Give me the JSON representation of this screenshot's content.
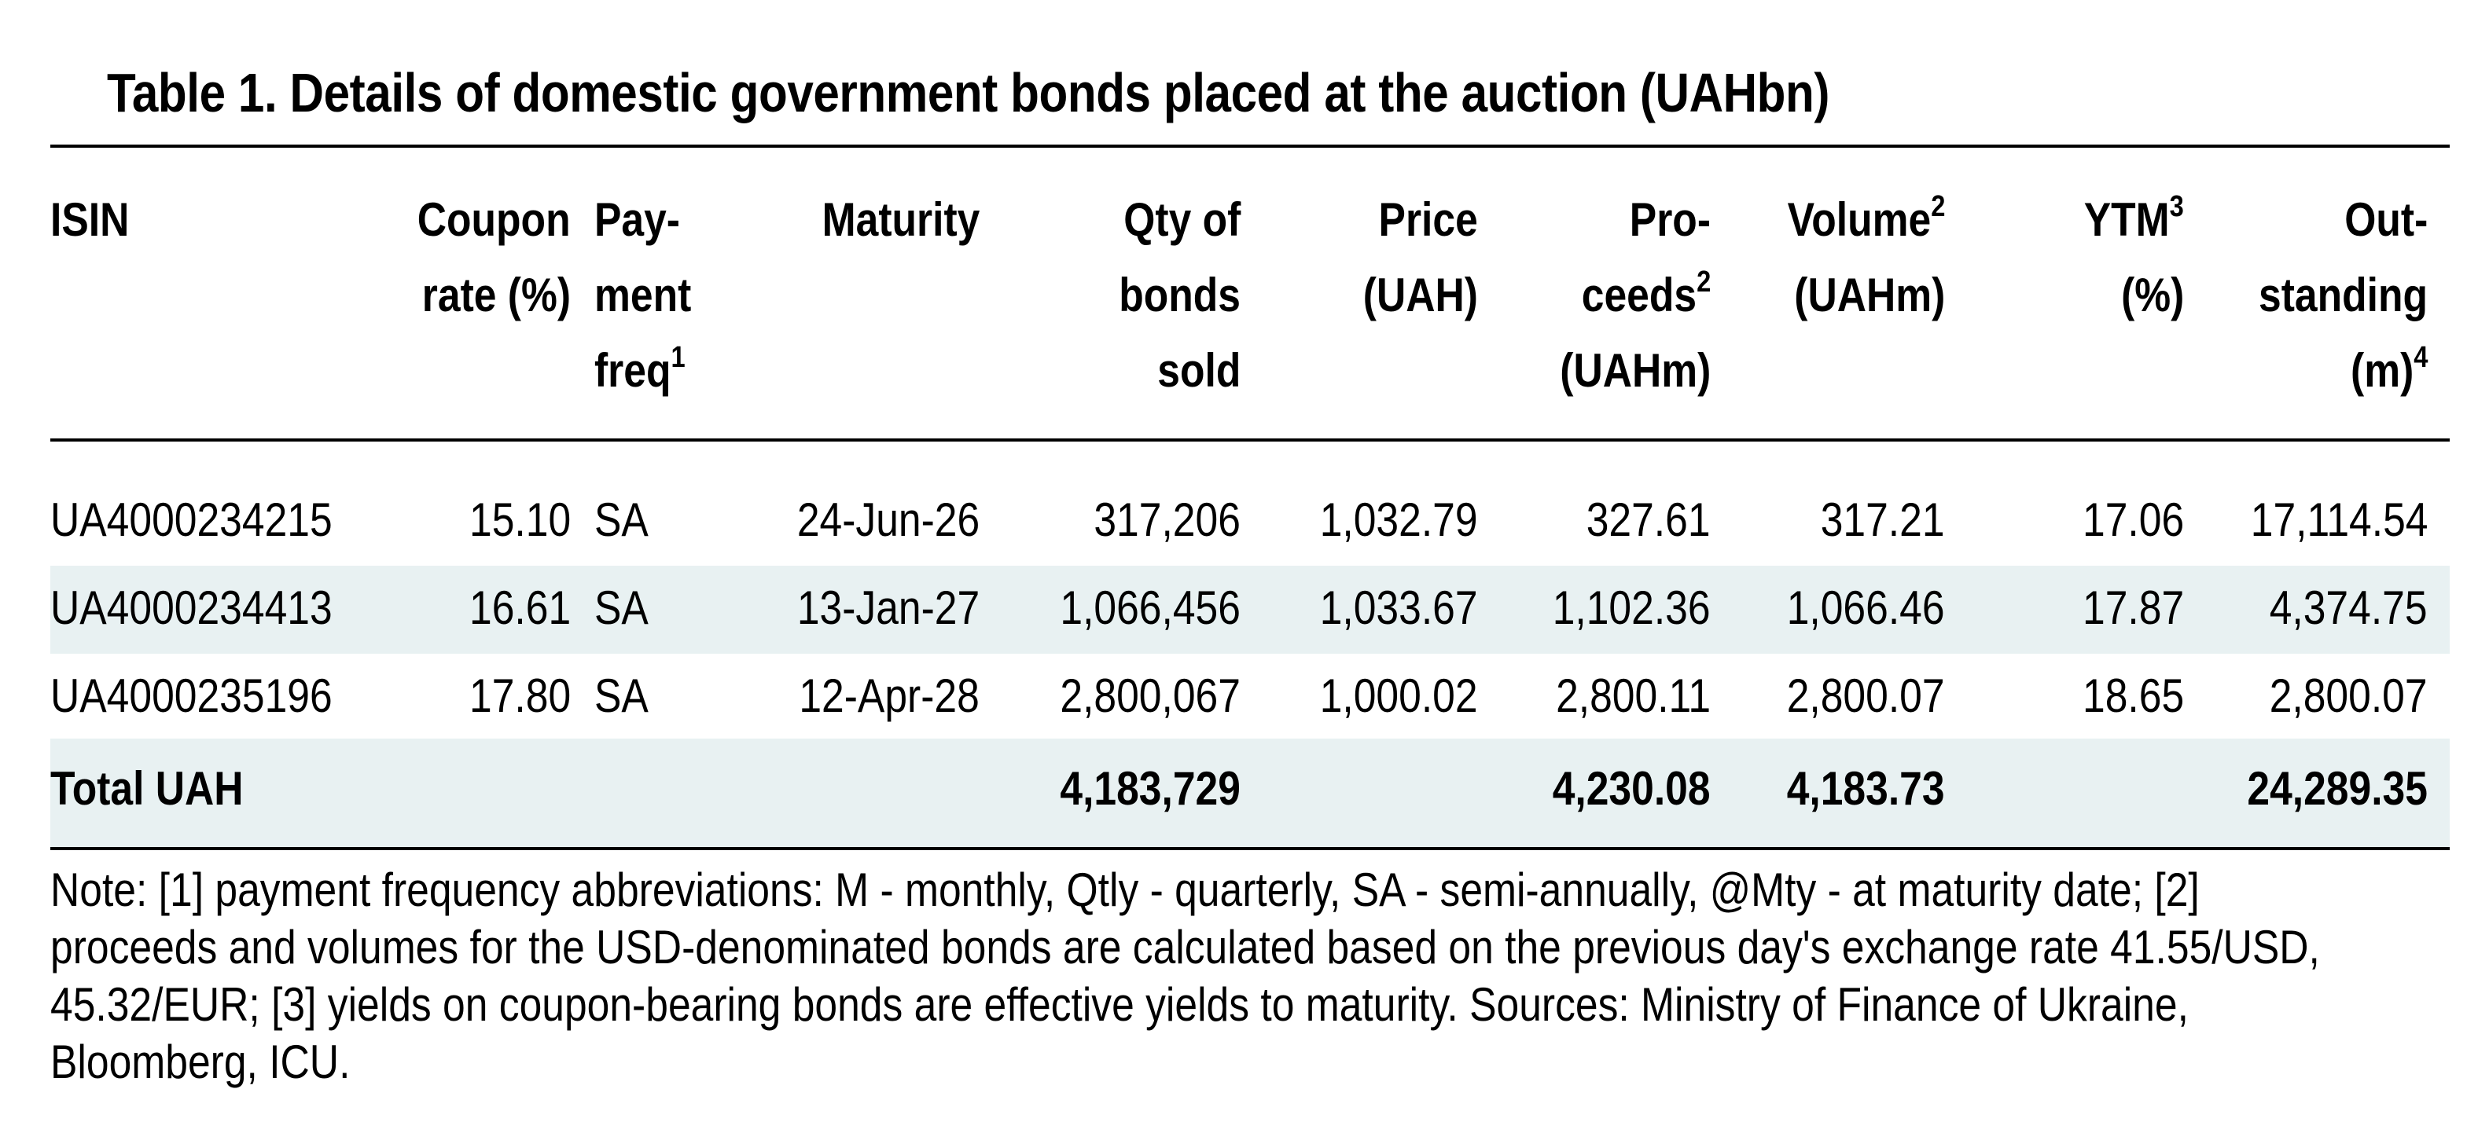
{
  "title": "Table 1. Details of domestic government bonds placed at the auction (UAHbn)",
  "colors": {
    "band_fill": "#e8f1f2",
    "rule": "#000000",
    "text": "#000000"
  },
  "columns": [
    {
      "key": "isin",
      "lines": [
        "ISIN"
      ],
      "sup": ""
    },
    {
      "key": "coupon",
      "lines": [
        "Coupon",
        "rate (%)"
      ],
      "sup": ""
    },
    {
      "key": "freq",
      "lines": [
        "Pay-",
        "ment",
        "freq"
      ],
      "sup": "1"
    },
    {
      "key": "maturity",
      "lines": [
        "Maturity"
      ],
      "sup": ""
    },
    {
      "key": "qty",
      "lines": [
        "Qty of",
        "bonds",
        "sold"
      ],
      "sup": ""
    },
    {
      "key": "price",
      "lines": [
        "Price",
        "(UAH)"
      ],
      "sup": ""
    },
    {
      "key": "proceeds",
      "lines": [
        "Pro-",
        "ceeds",
        "(UAHm)"
      ],
      "sup": "2"
    },
    {
      "key": "volume",
      "lines": [
        "Volume",
        "(UAHm)"
      ],
      "sup": "2"
    },
    {
      "key": "ytm",
      "lines": [
        "YTM",
        "(%)"
      ],
      "sup": "3"
    },
    {
      "key": "outstanding",
      "lines": [
        "Out-",
        "standing",
        "(m)"
      ],
      "sup": "4"
    }
  ],
  "rows": [
    {
      "isin": "UA4000234215",
      "coupon": "15.10",
      "freq": "SA",
      "maturity": "24-Jun-26",
      "qty": "317,206",
      "price": "1,032.79",
      "proceeds": "327.61",
      "volume": "317.21",
      "ytm": "17.06",
      "outstanding": "17,114.54"
    },
    {
      "isin": "UA4000234413",
      "coupon": "16.61",
      "freq": "SA",
      "maturity": "13-Jan-27",
      "qty": "1,066,456",
      "price": "1,033.67",
      "proceeds": "1,102.36",
      "volume": "1,066.46",
      "ytm": "17.87",
      "outstanding": "4,374.75"
    },
    {
      "isin": "UA4000235196",
      "coupon": "17.80",
      "freq": "SA",
      "maturity": "12-Apr-28",
      "qty": "2,800,067",
      "price": "1,000.02",
      "proceeds": "2,800.11",
      "volume": "2,800.07",
      "ytm": "18.65",
      "outstanding": "2,800.07"
    }
  ],
  "total": {
    "label": "Total UAH",
    "qty": "4,183,729",
    "proceeds": "4,230.08",
    "volume": "4,183.73",
    "outstanding": "24,289.35"
  },
  "note": "Note: [1] payment frequency abbreviations: M - monthly, Qtly - quarterly, SA - semi-annually, @Mty - at maturity date; [2] proceeds and volumes for the USD-denominated bonds are calculated based on the previous day's exchange rate 41.55/USD, 45.32/EUR; [3] yields on coupon-bearing bonds are effective yields to maturity. Sources: Ministry of Finance of Ukraine, Bloomberg, ICU."
}
